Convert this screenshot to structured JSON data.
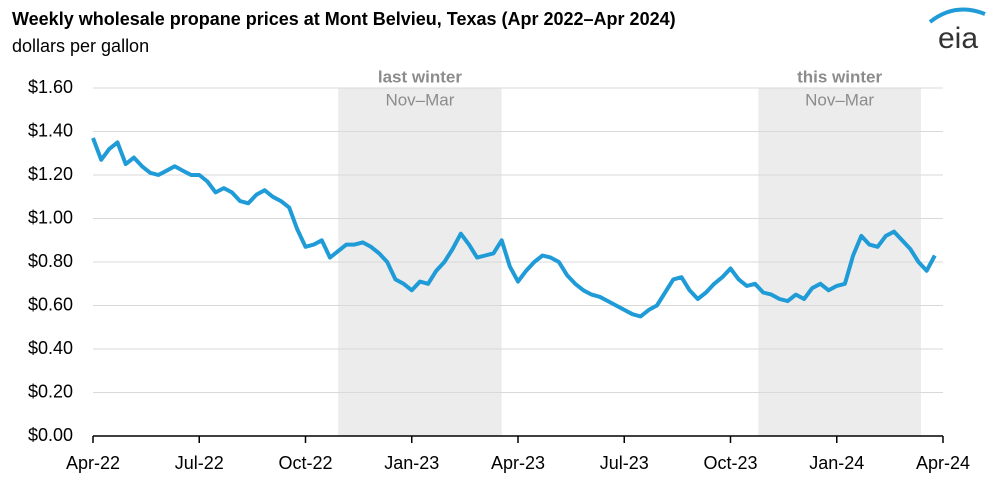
{
  "chart_data": {
    "type": "line",
    "title": "Weekly wholesale propane prices at Mont Belvieu, Texas (Apr 2022–Apr 2024)",
    "subtitle": "dollars per gallon",
    "logo": "eia",
    "categories": [
      "Apr-22",
      null,
      null,
      null,
      null,
      null,
      null,
      null,
      null,
      null,
      null,
      null,
      null,
      "Jul-22",
      null,
      null,
      null,
      null,
      null,
      null,
      null,
      null,
      null,
      null,
      null,
      null,
      "Oct-22",
      null,
      null,
      null,
      null,
      null,
      null,
      null,
      null,
      null,
      null,
      null,
      null,
      "Jan-23",
      null,
      null,
      null,
      null,
      null,
      null,
      null,
      null,
      null,
      null,
      null,
      null,
      "Apr-23",
      null,
      null,
      null,
      null,
      null,
      null,
      null,
      null,
      null,
      null,
      null,
      null,
      "Jul-23",
      null,
      null,
      null,
      null,
      null,
      null,
      null,
      null,
      null,
      null,
      null,
      null,
      "Oct-23",
      null,
      null,
      null,
      null,
      null,
      null,
      null,
      null,
      null,
      null,
      null,
      null,
      "Jan-24",
      null,
      null,
      null,
      null,
      null,
      null,
      null,
      null,
      null,
      null,
      null,
      null,
      "Apr-24"
    ],
    "series": [
      {
        "name": "propane price",
        "color": "#1f9bd7",
        "values": [
          1.37,
          1.27,
          1.32,
          1.35,
          1.25,
          1.28,
          1.24,
          1.21,
          1.2,
          1.22,
          1.24,
          1.22,
          1.2,
          1.2,
          1.17,
          1.12,
          1.14,
          1.12,
          1.08,
          1.07,
          1.11,
          1.13,
          1.1,
          1.08,
          1.05,
          0.95,
          0.87,
          0.88,
          0.9,
          0.82,
          0.85,
          0.88,
          0.88,
          0.89,
          0.87,
          0.84,
          0.8,
          0.72,
          0.7,
          0.67,
          0.71,
          0.7,
          0.76,
          0.8,
          0.86,
          0.93,
          0.88,
          0.82,
          0.83,
          0.84,
          0.9,
          0.78,
          0.71,
          0.76,
          0.8,
          0.83,
          0.82,
          0.8,
          0.74,
          0.7,
          0.67,
          0.65,
          0.64,
          0.62,
          0.6,
          0.58,
          0.56,
          0.55,
          0.58,
          0.6,
          0.66,
          0.72,
          0.73,
          0.67,
          0.63,
          0.66,
          0.7,
          0.73,
          0.77,
          0.72,
          0.69,
          0.7,
          0.66,
          0.65,
          0.63,
          0.62,
          0.65,
          0.63,
          0.68,
          0.7,
          0.67,
          0.69,
          0.7,
          0.83,
          0.92,
          0.88,
          0.87,
          0.92,
          0.94,
          0.9,
          0.86,
          0.8,
          0.76,
          0.83,
          null
        ]
      }
    ],
    "shaded": [
      {
        "title": "last winter",
        "label": "Nov–Mar",
        "from": 30,
        "to": 50
      },
      {
        "title": "this winter",
        "label": "Nov–Mar",
        "from": 81.4,
        "to": 101.3
      }
    ],
    "ylim": [
      0,
      1.6
    ],
    "yticks": [
      {
        "value": 0,
        "label": "$0.00"
      },
      {
        "value": 0.2,
        "label": "$0.20"
      },
      {
        "value": 0.4,
        "label": "$0.40"
      },
      {
        "value": 0.6,
        "label": "$0.60"
      },
      {
        "value": 0.8,
        "label": "$0.80"
      },
      {
        "value": 1.0,
        "label": "$1.00"
      },
      {
        "value": 1.2,
        "label": "$1.20"
      },
      {
        "value": 1.4,
        "label": "$1.40"
      },
      {
        "value": 1.6,
        "label": "$1.60"
      }
    ],
    "grid": true
  }
}
